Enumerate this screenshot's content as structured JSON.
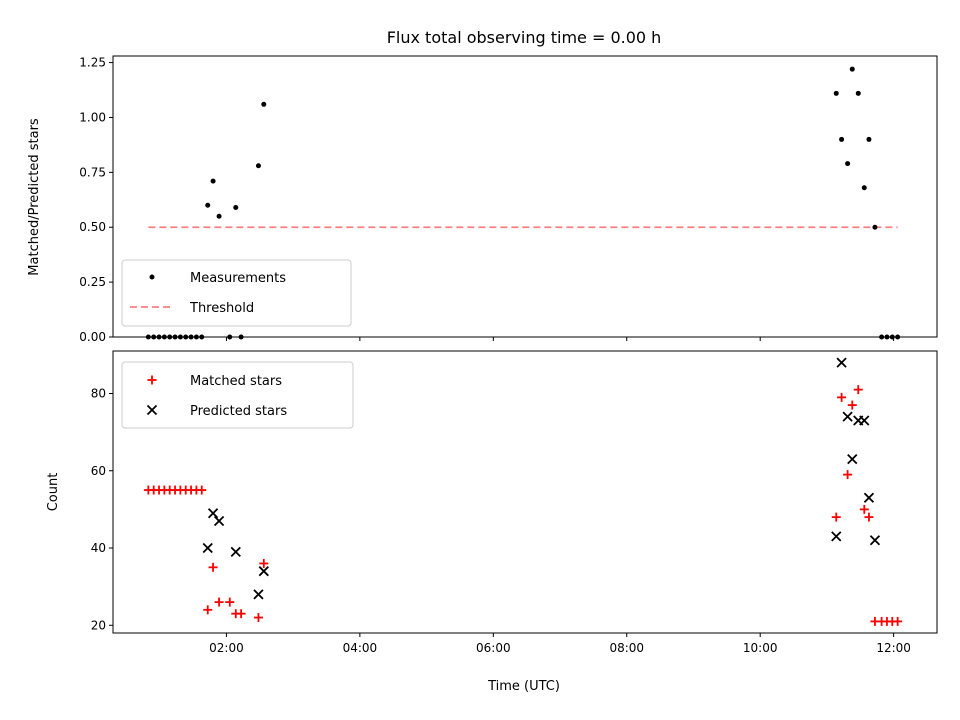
{
  "chart_data": [
    {
      "type": "scatter",
      "title": "Flux total observing time = 0.00 h",
      "xlabel": "",
      "ylabel": "Matched/Predicted stars",
      "xlim": [
        0.3,
        12.65
      ],
      "ylim": [
        0,
        1.28
      ],
      "yticks": [
        0.0,
        0.25,
        0.5,
        0.75,
        1.0,
        1.25
      ],
      "ytick_labels": [
        "0.00",
        "0.25",
        "0.50",
        "0.75",
        "1.00",
        "1.25"
      ],
      "xticks": [
        2,
        4,
        6,
        8,
        10,
        12
      ],
      "grid": false,
      "legend": "lower-left",
      "series": [
        {
          "name": "Measurements",
          "style": "dot",
          "color": "#000000",
          "x": [
            0.83,
            0.91,
            0.99,
            1.07,
            1.15,
            1.23,
            1.31,
            1.39,
            1.47,
            1.55,
            1.63,
            1.72,
            1.8,
            1.89,
            2.05,
            2.14,
            2.22,
            2.48,
            2.56,
            11.14,
            11.22,
            11.31,
            11.38,
            11.47,
            11.56,
            11.63,
            11.72,
            11.82,
            11.9,
            11.98,
            12.06
          ],
          "y": [
            0,
            0,
            0,
            0,
            0,
            0,
            0,
            0,
            0,
            0,
            0,
            0.6,
            0.71,
            0.55,
            0.0,
            0.59,
            0.0,
            0.78,
            1.06,
            1.11,
            0.9,
            0.79,
            1.22,
            1.11,
            0.68,
            0.9,
            0.5,
            0.0,
            0.0,
            0.0,
            0.0
          ]
        },
        {
          "name": "Threshold",
          "style": "dashed-line",
          "color": "#ff7f7f",
          "x": [
            0.83,
            12.06
          ],
          "y": [
            0.5,
            0.5
          ]
        }
      ]
    },
    {
      "type": "scatter",
      "title": "",
      "xlabel": "Time (UTC)",
      "ylabel": "Count",
      "xlim": [
        0.3,
        12.65
      ],
      "ylim": [
        18,
        91
      ],
      "yticks": [
        20,
        40,
        60,
        80
      ],
      "ytick_labels": [
        "20",
        "40",
        "60",
        "80"
      ],
      "xticks": [
        2,
        4,
        6,
        8,
        10,
        12
      ],
      "xtick_labels": [
        "02:00",
        "04:00",
        "06:00",
        "08:00",
        "10:00",
        "12:00"
      ],
      "grid": false,
      "legend": "upper-left",
      "series": [
        {
          "name": "Matched stars",
          "marker": "plus",
          "color": "#ff0000",
          "x": [
            0.83,
            0.91,
            0.99,
            1.07,
            1.15,
            1.23,
            1.31,
            1.39,
            1.47,
            1.55,
            1.63,
            1.72,
            1.8,
            1.89,
            2.05,
            2.14,
            2.22,
            2.48,
            2.56,
            11.14,
            11.22,
            11.31,
            11.38,
            11.47,
            11.56,
            11.63,
            11.72,
            11.82,
            11.9,
            11.98,
            12.06
          ],
          "y": [
            55,
            55,
            55,
            55,
            55,
            55,
            55,
            55,
            55,
            55,
            55,
            24,
            35,
            26,
            26,
            23,
            23,
            22,
            36,
            48,
            79,
            59,
            77,
            81,
            50,
            48,
            21,
            21,
            21,
            21,
            21
          ]
        },
        {
          "name": "Predicted stars",
          "marker": "x",
          "color": "#000000",
          "x": [
            1.72,
            1.8,
            1.89,
            2.14,
            2.48,
            2.56,
            11.14,
            11.22,
            11.31,
            11.38,
            11.47,
            11.56,
            11.63,
            11.72
          ],
          "y": [
            40,
            49,
            47,
            39,
            28,
            34,
            43,
            88,
            74,
            63,
            73,
            73,
            53,
            42
          ]
        }
      ]
    }
  ]
}
